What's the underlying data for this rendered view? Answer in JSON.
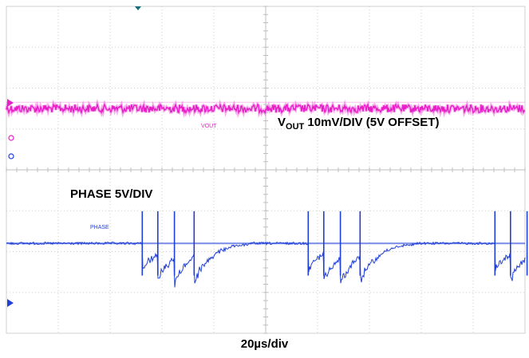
{
  "chart_data": {
    "type": "line",
    "title": "",
    "xlabel": "20µs/div",
    "grid": true,
    "divisions": {
      "x": 10,
      "y": 8
    },
    "series": [
      {
        "name": "VOUT",
        "screen_label": "VOUT",
        "annotation_main": "V",
        "annotation_sub": "OUT",
        "annotation_rest": " 10mV/DIV (5V OFFSET)",
        "color": "#e81ec8",
        "level_div": 2.5,
        "noise_div": 0.1
      },
      {
        "name": "PHASE",
        "screen_label": "PHASE",
        "annotation": "PHASE 5V/DIV",
        "color": "#1f3fd8",
        "baseline_div": 5.8,
        "burst_starts_div": [
          2.62,
          5.82,
          9.42
        ],
        "pulse_offsets_div": [
          0,
          0.3,
          0.62,
          1.0
        ],
        "ringing_amplitude_div": 0.75
      }
    ]
  },
  "markers": {
    "trigger_color": "#0f6f7a",
    "ch1_color": "#e81ec8",
    "ch2_color": "#1f3fd8"
  }
}
